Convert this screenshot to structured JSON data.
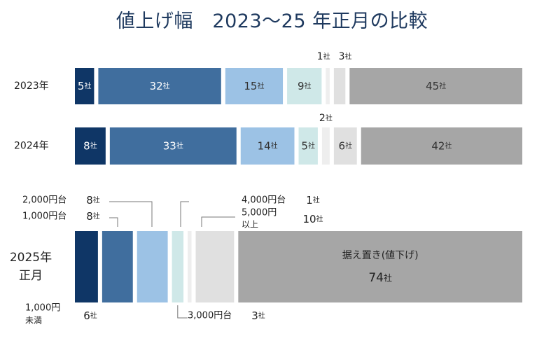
{
  "chart_data": {
    "type": "bar",
    "title": "値上げ幅　2023～25 年正月の比較",
    "counter_unit": "社",
    "series": [
      {
        "name": "2023年",
        "label": "2023年",
        "segments": [
          {
            "name": "1,000円未満",
            "value": 5,
            "color": "#0f3666",
            "label": "5社"
          },
          {
            "name": "1,000円台",
            "value": 32,
            "color": "#406e9e",
            "label": "32社"
          },
          {
            "name": "2,000円台",
            "value": 15,
            "color": "#9cc2e5",
            "label": "15社"
          },
          {
            "name": "3,000円台",
            "value": 9,
            "color": "#cfe8e8",
            "label": "9社"
          },
          {
            "name": "4,000円台",
            "value": 1,
            "color": "#eeeeee",
            "label": "1社"
          },
          {
            "name": "5,000円以上",
            "value": 3,
            "color": "#e0e0e0",
            "label": "3社"
          },
          {
            "name": "据え置き(値下げ)",
            "value": 45,
            "color": "#a6a6a6",
            "label": "45社"
          }
        ]
      },
      {
        "name": "2024年",
        "label": "2024年",
        "segments": [
          {
            "name": "1,000円未満",
            "value": 8,
            "color": "#0f3666",
            "label": "8社"
          },
          {
            "name": "1,000円台",
            "value": 33,
            "color": "#406e9e",
            "label": "33社"
          },
          {
            "name": "2,000円台",
            "value": 14,
            "color": "#9cc2e5",
            "label": "14社"
          },
          {
            "name": "3,000円台",
            "value": 5,
            "color": "#cfe8e8",
            "label": "5社"
          },
          {
            "name": "4,000円台",
            "value": 2,
            "color": "#eeeeee",
            "label": "2社"
          },
          {
            "name": "5,000円以上",
            "value": 6,
            "color": "#e0e0e0",
            "label": "6社"
          },
          {
            "name": "据え置き(値下げ)",
            "value": 42,
            "color": "#a6a6a6",
            "label": "42社"
          }
        ]
      },
      {
        "name": "2025年正月",
        "label_line1": "2025年",
        "label_line2": "正月",
        "segments": [
          {
            "name": "1,000円未満",
            "value": 6,
            "color": "#0f3666",
            "label": "6社",
            "name_line1": "1,000円",
            "name_line2": "未満"
          },
          {
            "name": "1,000円台",
            "value": 8,
            "color": "#406e9e",
            "label": "8社"
          },
          {
            "name": "2,000円台",
            "value": 8,
            "color": "#9cc2e5",
            "label": "8社"
          },
          {
            "name": "3,000円台",
            "value": 3,
            "color": "#cfe8e8",
            "label": "3社"
          },
          {
            "name": "4,000円台",
            "value": 1,
            "color": "#eeeeee",
            "label": "1社"
          },
          {
            "name": "5,000円以上",
            "value": 10,
            "color": "#e0e0e0",
            "label": "10社",
            "name_line1": "5,000円",
            "name_line2": "以上"
          },
          {
            "name": "据え置き(値下げ)",
            "value": 74,
            "color": "#a6a6a6",
            "label": "74社"
          }
        ]
      }
    ]
  }
}
